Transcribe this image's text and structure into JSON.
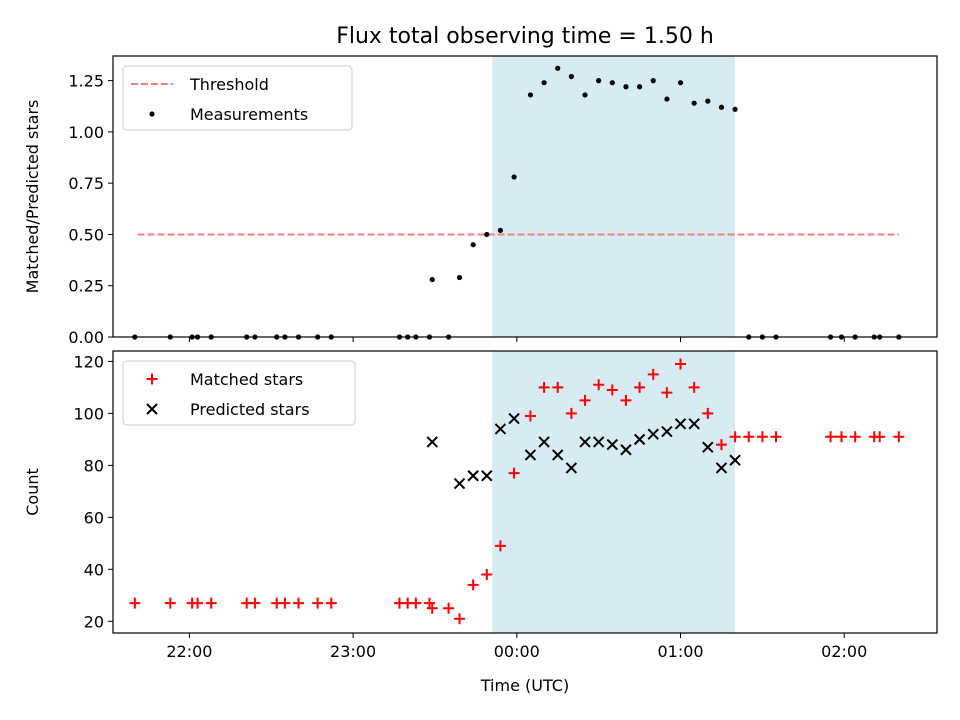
{
  "title": "Flux total observing time = 1.50 h",
  "colors": {
    "threshold": "#f08080",
    "measurement": "#000000",
    "matched": "#ff0000",
    "predicted": "#000000",
    "span": "#add8e6"
  },
  "chart_data": [
    {
      "type": "scatter",
      "panel": "top",
      "ylabel": "Matched/Predicted stars",
      "xlabel": "",
      "ylim": [
        0,
        1.37
      ],
      "yticks": [
        "0.00",
        "0.25",
        "0.50",
        "0.75",
        "1.00",
        "1.25"
      ],
      "ytick_values": [
        0,
        0.25,
        0.5,
        0.75,
        1.0,
        1.25
      ],
      "highlight_span": {
        "x_start": "23:51",
        "x_end": "01:20"
      },
      "legend": {
        "placement": "upper left",
        "entries": [
          "Threshold",
          "Measurements"
        ]
      },
      "threshold": {
        "name": "Threshold",
        "y": 0.5,
        "x_start": "21:41",
        "x_end": "02:20",
        "style": "dashed"
      },
      "series": [
        {
          "name": "Measurements",
          "marker": "dot",
          "points": [
            [
              "21:40",
              0
            ],
            [
              "21:53",
              0
            ],
            [
              "22:01",
              0
            ],
            [
              "22:03",
              0
            ],
            [
              "22:08",
              0
            ],
            [
              "22:21",
              0
            ],
            [
              "22:24",
              0
            ],
            [
              "22:32",
              0
            ],
            [
              "22:35",
              0
            ],
            [
              "22:40",
              0
            ],
            [
              "22:47",
              0
            ],
            [
              "22:52",
              0
            ],
            [
              "23:17",
              0
            ],
            [
              "23:20",
              0
            ],
            [
              "23:23",
              0
            ],
            [
              "23:28",
              0
            ],
            [
              "23:29",
              0.28
            ],
            [
              "23:35",
              0
            ],
            [
              "23:39",
              0.29
            ],
            [
              "23:44",
              0.45
            ],
            [
              "23:49",
              0.5
            ],
            [
              "23:54",
              0.52
            ],
            [
              "23:59",
              0.78
            ],
            [
              "00:05",
              1.18
            ],
            [
              "00:10",
              1.24
            ],
            [
              "00:15",
              1.31
            ],
            [
              "00:20",
              1.27
            ],
            [
              "00:25",
              1.18
            ],
            [
              "00:30",
              1.25
            ],
            [
              "00:35",
              1.24
            ],
            [
              "00:40",
              1.22
            ],
            [
              "00:45",
              1.22
            ],
            [
              "00:50",
              1.25
            ],
            [
              "00:55",
              1.16
            ],
            [
              "01:00",
              1.24
            ],
            [
              "01:05",
              1.14
            ],
            [
              "01:10",
              1.15
            ],
            [
              "01:15",
              1.12
            ],
            [
              "01:20",
              1.11
            ],
            [
              "01:25",
              0
            ],
            [
              "01:30",
              0
            ],
            [
              "01:35",
              0
            ],
            [
              "01:55",
              0
            ],
            [
              "01:59",
              0
            ],
            [
              "02:04",
              0
            ],
            [
              "02:11",
              0
            ],
            [
              "02:13",
              0
            ],
            [
              "02:20",
              0
            ]
          ]
        }
      ]
    },
    {
      "type": "scatter",
      "panel": "bottom",
      "ylabel": "Count",
      "xlabel": "Time (UTC)",
      "xlim": [
        "21:32",
        "02:34"
      ],
      "ylim": [
        15.5,
        124
      ],
      "xticks": [
        "22:00",
        "23:00",
        "00:00",
        "01:00",
        "02:00"
      ],
      "yticks": [
        "20",
        "40",
        "60",
        "80",
        "100",
        "120"
      ],
      "ytick_values": [
        20,
        40,
        60,
        80,
        100,
        120
      ],
      "highlight_span": {
        "x_start": "23:51",
        "x_end": "01:20"
      },
      "legend": {
        "placement": "upper left",
        "entries": [
          "Matched stars",
          "Predicted stars"
        ]
      },
      "series": [
        {
          "name": "Matched stars",
          "marker": "plus",
          "points": [
            [
              "21:40",
              27
            ],
            [
              "21:53",
              27
            ],
            [
              "22:01",
              27
            ],
            [
              "22:03",
              27
            ],
            [
              "22:08",
              27
            ],
            [
              "22:21",
              27
            ],
            [
              "22:24",
              27
            ],
            [
              "22:32",
              27
            ],
            [
              "22:35",
              27
            ],
            [
              "22:40",
              27
            ],
            [
              "22:47",
              27
            ],
            [
              "22:52",
              27
            ],
            [
              "23:17",
              27
            ],
            [
              "23:20",
              27
            ],
            [
              "23:23",
              27
            ],
            [
              "23:28",
              27
            ],
            [
              "23:29",
              25
            ],
            [
              "23:35",
              25
            ],
            [
              "23:39",
              21
            ],
            [
              "23:44",
              34
            ],
            [
              "23:49",
              38
            ],
            [
              "23:54",
              49
            ],
            [
              "23:59",
              77
            ],
            [
              "00:05",
              99
            ],
            [
              "00:10",
              110
            ],
            [
              "00:15",
              110
            ],
            [
              "00:20",
              100
            ],
            [
              "00:25",
              105
            ],
            [
              "00:30",
              111
            ],
            [
              "00:35",
              109
            ],
            [
              "00:40",
              105
            ],
            [
              "00:45",
              110
            ],
            [
              "00:50",
              115
            ],
            [
              "00:55",
              108
            ],
            [
              "01:00",
              119
            ],
            [
              "01:05",
              110
            ],
            [
              "01:10",
              100
            ],
            [
              "01:15",
              88
            ],
            [
              "01:20",
              91
            ],
            [
              "01:25",
              91
            ],
            [
              "01:30",
              91
            ],
            [
              "01:35",
              91
            ],
            [
              "01:55",
              91
            ],
            [
              "01:59",
              91
            ],
            [
              "02:04",
              91
            ],
            [
              "02:11",
              91
            ],
            [
              "02:13",
              91
            ],
            [
              "02:20",
              91
            ]
          ]
        },
        {
          "name": "Predicted stars",
          "marker": "x",
          "points": [
            [
              "23:29",
              89
            ],
            [
              "23:39",
              73
            ],
            [
              "23:44",
              76
            ],
            [
              "23:49",
              76
            ],
            [
              "23:54",
              94
            ],
            [
              "23:59",
              98
            ],
            [
              "00:05",
              84
            ],
            [
              "00:10",
              89
            ],
            [
              "00:15",
              84
            ],
            [
              "00:20",
              79
            ],
            [
              "00:25",
              89
            ],
            [
              "00:30",
              89
            ],
            [
              "00:35",
              88
            ],
            [
              "00:40",
              86
            ],
            [
              "00:45",
              90
            ],
            [
              "00:50",
              92
            ],
            [
              "00:55",
              93
            ],
            [
              "01:00",
              96
            ],
            [
              "01:05",
              96
            ],
            [
              "01:10",
              87
            ],
            [
              "01:15",
              79
            ],
            [
              "01:20",
              82
            ]
          ]
        }
      ]
    }
  ]
}
